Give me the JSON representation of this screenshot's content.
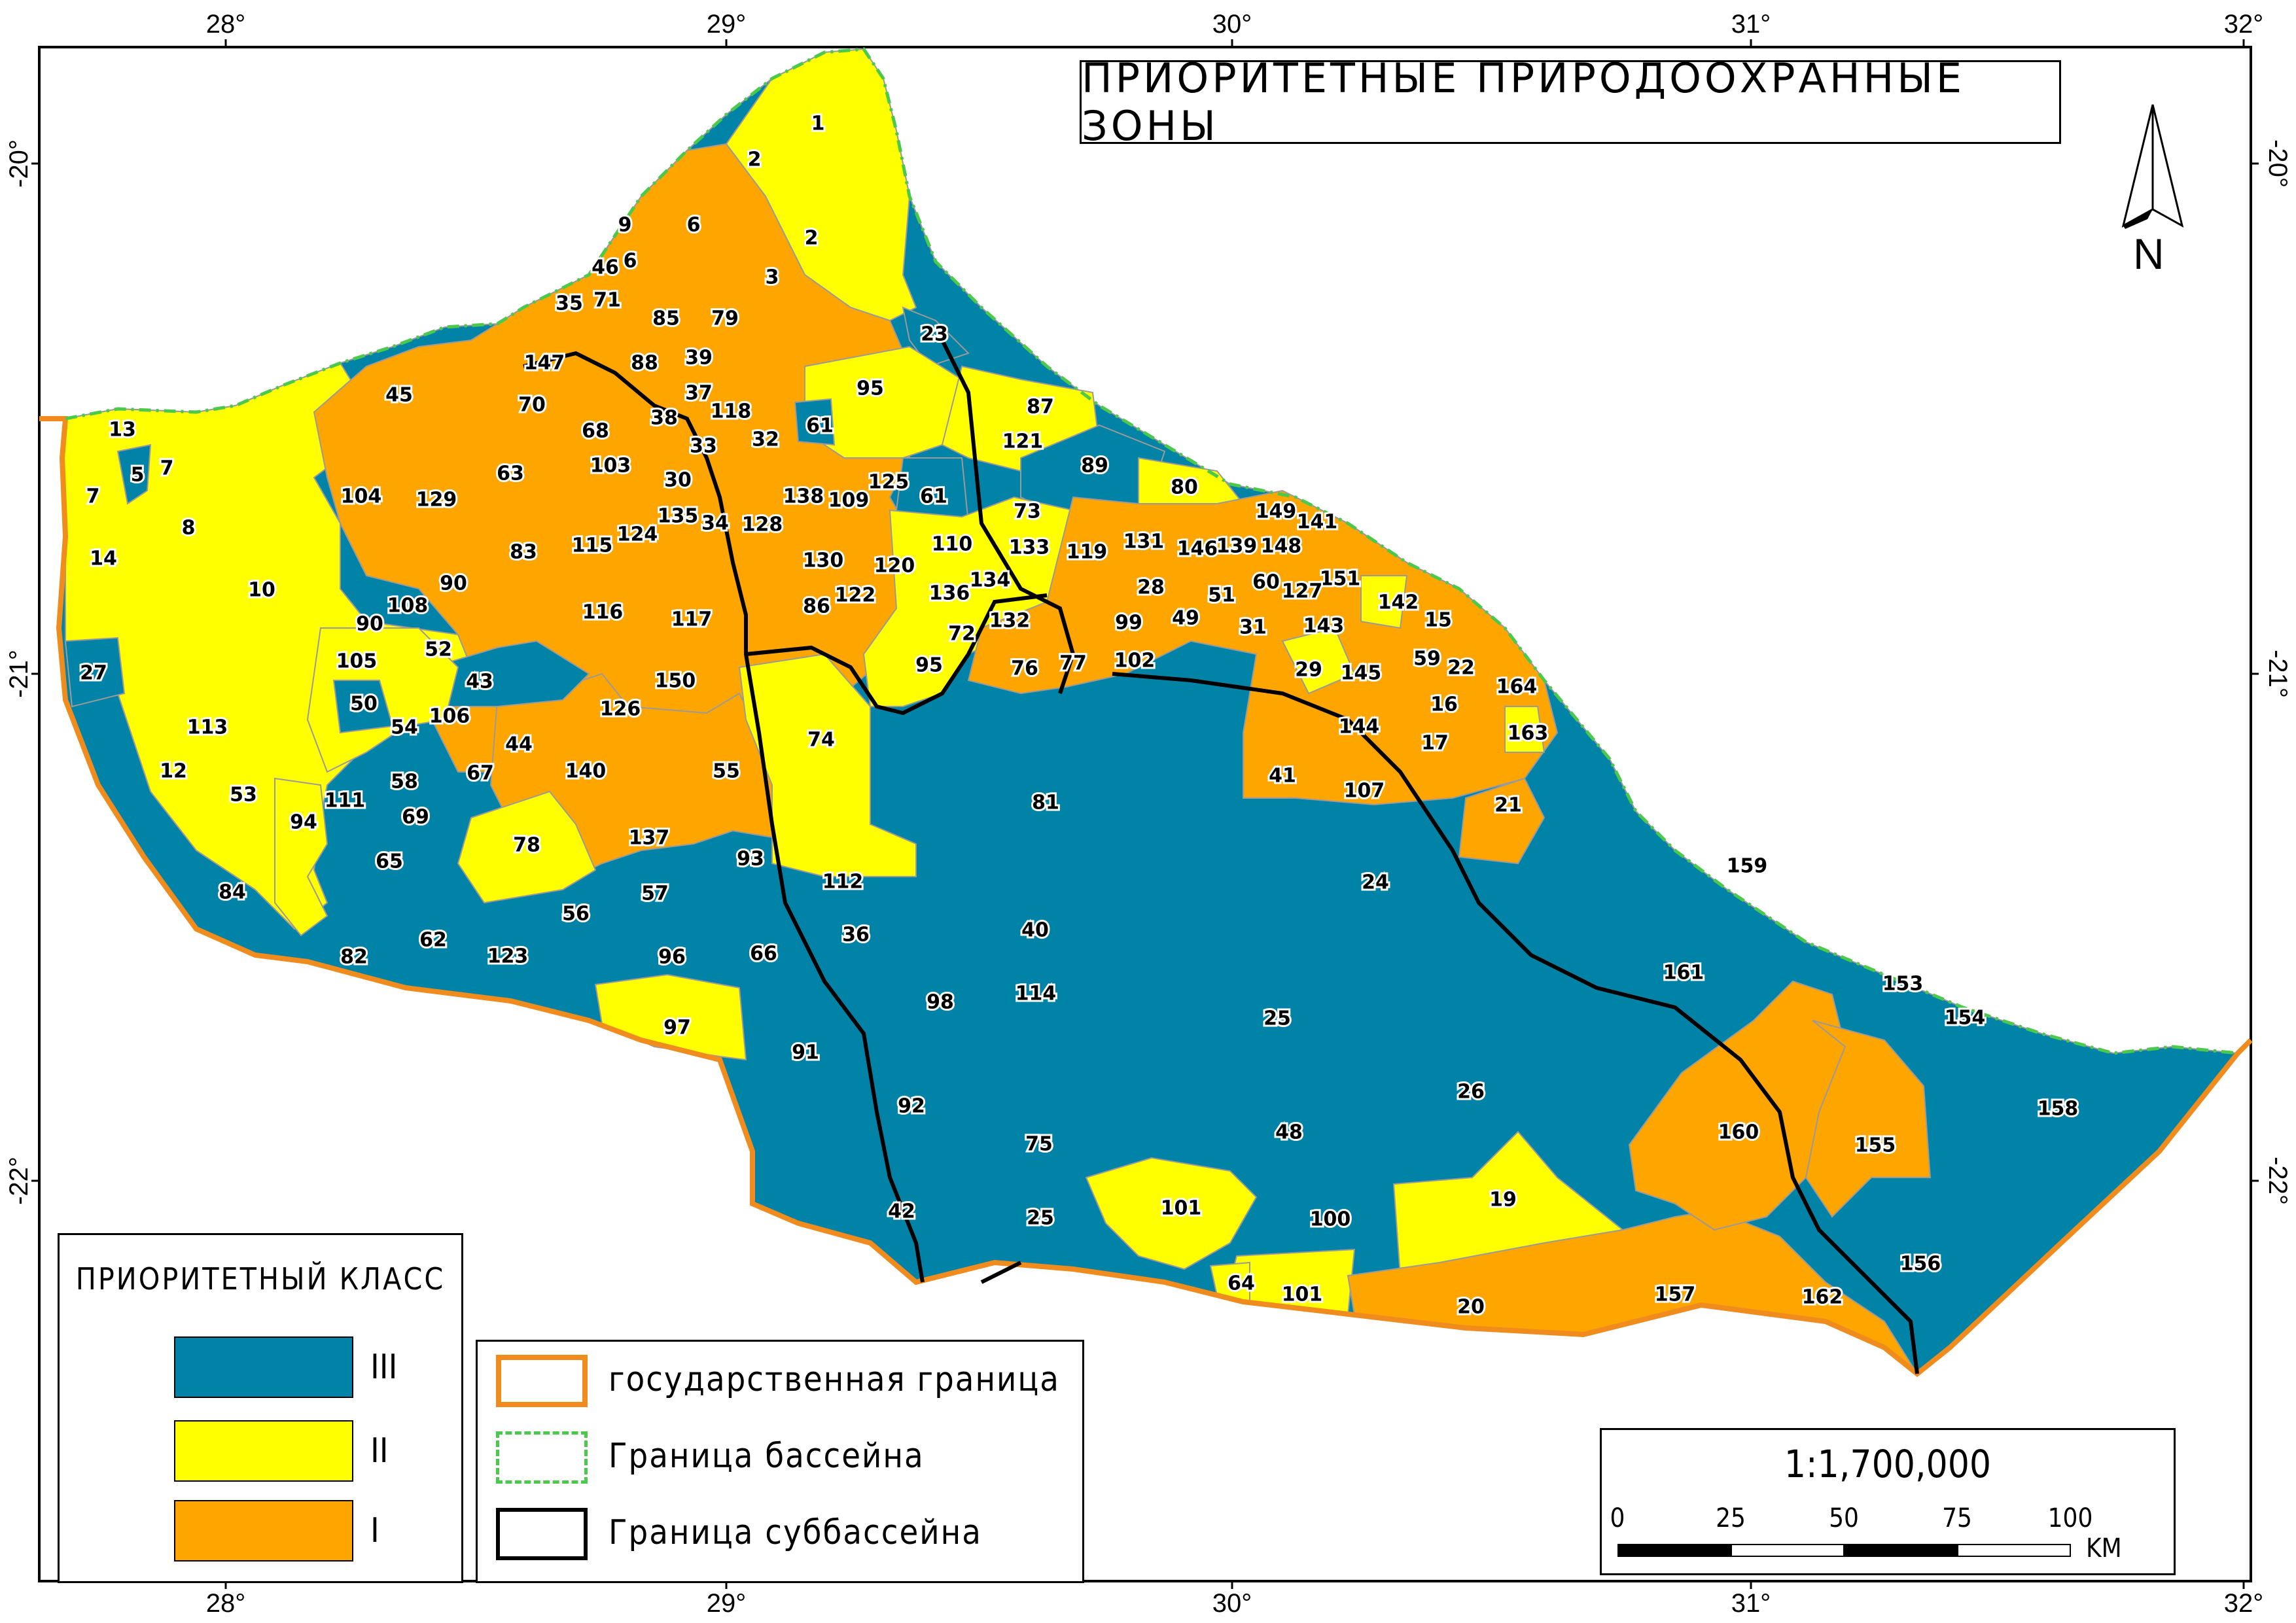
{
  "title": "ПРИОРИТЕТНЫЕ ПРИРОДООХРАННЫЕ ЗОНЫ",
  "north_label": "N",
  "longitude_ticks": [
    "28°",
    "29°",
    "30°",
    "31°",
    "32°"
  ],
  "latitude_ticks": [
    "-20°",
    "-21°",
    "-22°"
  ],
  "colors": {
    "class_III": "#0083a6",
    "class_II": "#ffff00",
    "class_I": "#ffa500",
    "state_border": "#f08c1e",
    "basin_border": "#4cc94c",
    "subbasin_border": "#000000"
  },
  "legend_class": {
    "title": "ПРИОРИТЕТНЫЙ КЛАСС",
    "items": [
      {
        "label": "III",
        "color": "#0083a6"
      },
      {
        "label": "II",
        "color": "#ffff00"
      },
      {
        "label": "I",
        "color": "#ffa500"
      }
    ]
  },
  "legend_lines": {
    "items": [
      {
        "label": "государственная граница"
      },
      {
        "label": "Граница бассейна"
      },
      {
        "label": "Граница суббассейна"
      }
    ]
  },
  "scale": {
    "ratio": "1:1,700,000",
    "ticks": [
      "0",
      "25",
      "50",
      "75",
      "100"
    ],
    "unit": "KM"
  },
  "zones": [
    {
      "id": "1",
      "cls": "II"
    },
    {
      "id": "2",
      "cls": "II"
    },
    {
      "id": "6",
      "cls": "I"
    },
    {
      "id": "9",
      "cls": "I"
    },
    {
      "id": "46",
      "cls": "I"
    },
    {
      "id": "71",
      "cls": "I"
    },
    {
      "id": "35",
      "cls": "I"
    },
    {
      "id": "3",
      "cls": "I"
    },
    {
      "id": "85",
      "cls": "I"
    },
    {
      "id": "79",
      "cls": "I"
    },
    {
      "id": "147",
      "cls": "I"
    },
    {
      "id": "88",
      "cls": "I"
    },
    {
      "id": "39",
      "cls": "I"
    },
    {
      "id": "23",
      "cls": "III"
    },
    {
      "id": "95",
      "cls": "II"
    },
    {
      "id": "45",
      "cls": "I"
    },
    {
      "id": "70",
      "cls": "I"
    },
    {
      "id": "37",
      "cls": "I"
    },
    {
      "id": "118",
      "cls": "I"
    },
    {
      "id": "87",
      "cls": "II"
    },
    {
      "id": "13",
      "cls": "II"
    },
    {
      "id": "38",
      "cls": "I"
    },
    {
      "id": "61",
      "cls": "III"
    },
    {
      "id": "68",
      "cls": "I"
    },
    {
      "id": "33",
      "cls": "I"
    },
    {
      "id": "32",
      "cls": "I"
    },
    {
      "id": "121",
      "cls": "II"
    },
    {
      "id": "5",
      "cls": "III"
    },
    {
      "id": "7",
      "cls": "II"
    },
    {
      "id": "63",
      "cls": "I"
    },
    {
      "id": "103",
      "cls": "I"
    },
    {
      "id": "89",
      "cls": "III"
    },
    {
      "id": "104",
      "cls": "I"
    },
    {
      "id": "129",
      "cls": "I"
    },
    {
      "id": "30",
      "cls": "I"
    },
    {
      "id": "125",
      "cls": "II"
    },
    {
      "id": "80",
      "cls": "II"
    },
    {
      "id": "138",
      "cls": "I"
    },
    {
      "id": "109",
      "cls": "I"
    },
    {
      "id": "8",
      "cls": "II"
    },
    {
      "id": "135",
      "cls": "I"
    },
    {
      "id": "34",
      "cls": "II"
    },
    {
      "id": "128",
      "cls": "I"
    },
    {
      "id": "73",
      "cls": "II"
    },
    {
      "id": "149",
      "cls": "I"
    },
    {
      "id": "141",
      "cls": "I"
    },
    {
      "id": "14",
      "cls": "II"
    },
    {
      "id": "83",
      "cls": "I"
    },
    {
      "id": "115",
      "cls": "I"
    },
    {
      "id": "124",
      "cls": "I"
    },
    {
      "id": "110",
      "cls": "II"
    },
    {
      "id": "133",
      "cls": "II"
    },
    {
      "id": "119",
      "cls": "I"
    },
    {
      "id": "131",
      "cls": "I"
    },
    {
      "id": "146",
      "cls": "I"
    },
    {
      "id": "139",
      "cls": "I"
    },
    {
      "id": "148",
      "cls": "I"
    },
    {
      "id": "10",
      "cls": "II"
    },
    {
      "id": "90",
      "cls": "II"
    },
    {
      "id": "130",
      "cls": "I"
    },
    {
      "id": "120",
      "cls": "I"
    },
    {
      "id": "134",
      "cls": "II"
    },
    {
      "id": "60",
      "cls": "I"
    },
    {
      "id": "151",
      "cls": "II"
    },
    {
      "id": "108",
      "cls": "II"
    },
    {
      "id": "116",
      "cls": "I"
    },
    {
      "id": "86",
      "cls": "I"
    },
    {
      "id": "122",
      "cls": "I"
    },
    {
      "id": "136",
      "cls": "II"
    },
    {
      "id": "28",
      "cls": "I"
    },
    {
      "id": "51",
      "cls": "I"
    },
    {
      "id": "127",
      "cls": "I"
    },
    {
      "id": "142",
      "cls": "I"
    },
    {
      "id": "15",
      "cls": "I"
    },
    {
      "id": "117",
      "cls": "I"
    },
    {
      "id": "132",
      "cls": "I"
    },
    {
      "id": "99",
      "cls": "I"
    },
    {
      "id": "49",
      "cls": "I"
    },
    {
      "id": "31",
      "cls": "I"
    },
    {
      "id": "143",
      "cls": "I"
    },
    {
      "id": "27",
      "cls": "III"
    },
    {
      "id": "105",
      "cls": "II"
    },
    {
      "id": "52",
      "cls": "II"
    },
    {
      "id": "72",
      "cls": "II"
    },
    {
      "id": "59",
      "cls": "I"
    },
    {
      "id": "22",
      "cls": "I"
    },
    {
      "id": "76",
      "cls": "I"
    },
    {
      "id": "77",
      "cls": "I"
    },
    {
      "id": "102",
      "cls": "I"
    },
    {
      "id": "29",
      "cls": "II"
    },
    {
      "id": "145",
      "cls": "I"
    },
    {
      "id": "164",
      "cls": "I"
    },
    {
      "id": "50",
      "cls": "III"
    },
    {
      "id": "43",
      "cls": "III"
    },
    {
      "id": "150",
      "cls": "I"
    },
    {
      "id": "16",
      "cls": "I"
    },
    {
      "id": "113",
      "cls": "III"
    },
    {
      "id": "54",
      "cls": "II"
    },
    {
      "id": "106",
      "cls": "II"
    },
    {
      "id": "126",
      "cls": "I"
    },
    {
      "id": "74",
      "cls": "II"
    },
    {
      "id": "144",
      "cls": "I"
    },
    {
      "id": "163",
      "cls": "II"
    },
    {
      "id": "17",
      "cls": "I"
    },
    {
      "id": "12",
      "cls": "III"
    },
    {
      "id": "58",
      "cls": "III"
    },
    {
      "id": "44",
      "cls": "I"
    },
    {
      "id": "67",
      "cls": "III"
    },
    {
      "id": "140",
      "cls": "I"
    },
    {
      "id": "55",
      "cls": "I"
    },
    {
      "id": "41",
      "cls": "I"
    },
    {
      "id": "107",
      "cls": "I"
    },
    {
      "id": "53",
      "cls": "III"
    },
    {
      "id": "111",
      "cls": "III"
    },
    {
      "id": "81",
      "cls": "III"
    },
    {
      "id": "21",
      "cls": "I"
    },
    {
      "id": "94",
      "cls": "II"
    },
    {
      "id": "69",
      "cls": "III"
    },
    {
      "id": "78",
      "cls": "II"
    },
    {
      "id": "137",
      "cls": "I"
    },
    {
      "id": "65",
      "cls": "III"
    },
    {
      "id": "93",
      "cls": "III"
    },
    {
      "id": "159",
      "cls": "III"
    },
    {
      "id": "84",
      "cls": "III"
    },
    {
      "id": "112",
      "cls": "III"
    },
    {
      "id": "24",
      "cls": "III"
    },
    {
      "id": "57",
      "cls": "III"
    },
    {
      "id": "56",
      "cls": "III"
    },
    {
      "id": "36",
      "cls": "III"
    },
    {
      "id": "40",
      "cls": "III"
    },
    {
      "id": "62",
      "cls": "III"
    },
    {
      "id": "82",
      "cls": "III"
    },
    {
      "id": "123",
      "cls": "III"
    },
    {
      "id": "96",
      "cls": "III"
    },
    {
      "id": "66",
      "cls": "III"
    },
    {
      "id": "161",
      "cls": "III"
    },
    {
      "id": "153",
      "cls": "III"
    },
    {
      "id": "98",
      "cls": "III"
    },
    {
      "id": "114",
      "cls": "III"
    },
    {
      "id": "154",
      "cls": "III"
    },
    {
      "id": "97",
      "cls": "II"
    },
    {
      "id": "25",
      "cls": "III"
    },
    {
      "id": "91",
      "cls": "III"
    },
    {
      "id": "26",
      "cls": "III"
    },
    {
      "id": "158",
      "cls": "III"
    },
    {
      "id": "92",
      "cls": "III"
    },
    {
      "id": "160",
      "cls": "I"
    },
    {
      "id": "48",
      "cls": "III"
    },
    {
      "id": "75",
      "cls": "III"
    },
    {
      "id": "155",
      "cls": "I"
    },
    {
      "id": "19",
      "cls": "II"
    },
    {
      "id": "101",
      "cls": "II"
    },
    {
      "id": "100",
      "cls": "III"
    },
    {
      "id": "42",
      "cls": "III"
    },
    {
      "id": "156",
      "cls": "III"
    },
    {
      "id": "64",
      "cls": "II"
    },
    {
      "id": "20",
      "cls": "I"
    },
    {
      "id": "157",
      "cls": "I"
    },
    {
      "id": "162",
      "cls": "I"
    }
  ]
}
